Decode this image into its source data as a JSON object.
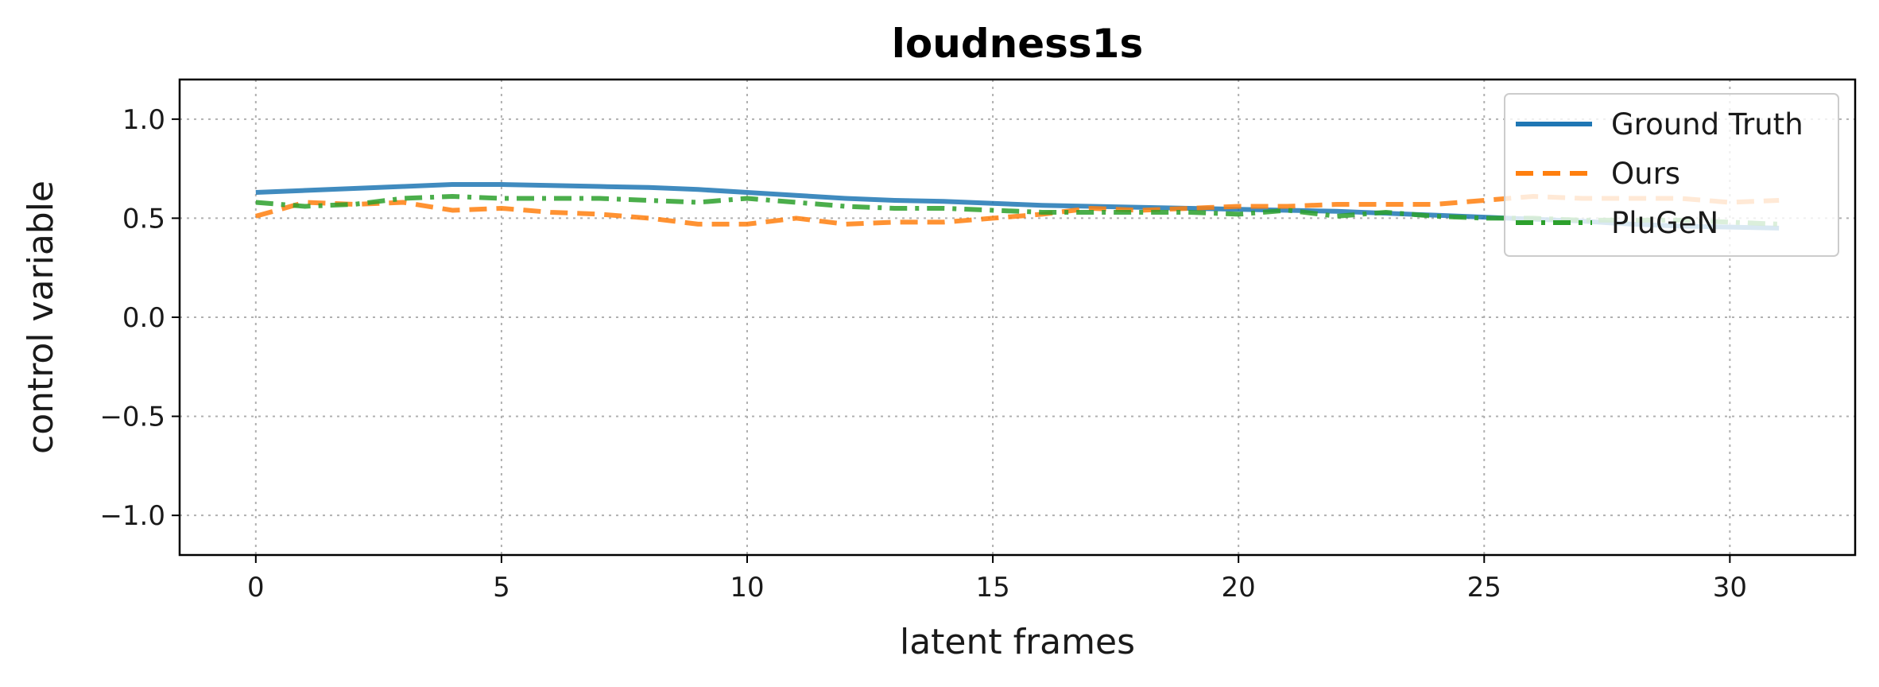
{
  "chart_data": {
    "type": "line",
    "title": "loudness1s",
    "xlabel": "latent frames",
    "ylabel": "control variable",
    "xlim": [
      -1.55,
      32.55
    ],
    "ylim": [
      -1.2,
      1.2
    ],
    "xticks": [
      0,
      5,
      10,
      15,
      20,
      25,
      30
    ],
    "xtick_labels": [
      "0",
      "5",
      "10",
      "15",
      "20",
      "25",
      "30"
    ],
    "yticks": [
      -1.0,
      -0.5,
      0.0,
      0.5,
      1.0
    ],
    "ytick_labels": [
      "−1.0",
      "−0.5",
      "0.0",
      "0.5",
      "1.0"
    ],
    "grid": true,
    "legend_position": "top-right",
    "x": [
      0,
      1,
      2,
      3,
      4,
      5,
      6,
      7,
      8,
      9,
      10,
      11,
      12,
      13,
      14,
      15,
      16,
      17,
      18,
      19,
      20,
      21,
      22,
      23,
      24,
      25,
      26,
      27,
      28,
      29,
      30,
      31
    ],
    "series": [
      {
        "name": "Ground Truth",
        "color": "#1f77b4",
        "style": "solid",
        "values": [
          0.63,
          0.64,
          0.65,
          0.66,
          0.67,
          0.67,
          0.665,
          0.66,
          0.655,
          0.645,
          0.63,
          0.615,
          0.6,
          0.59,
          0.585,
          0.575,
          0.565,
          0.56,
          0.555,
          0.55,
          0.545,
          0.54,
          0.535,
          0.525,
          0.515,
          0.505,
          0.495,
          0.485,
          0.47,
          0.46,
          0.455,
          0.45
        ]
      },
      {
        "name": "Ours",
        "color": "#ff7f0e",
        "style": "dashed",
        "values": [
          0.51,
          0.58,
          0.57,
          0.58,
          0.54,
          0.55,
          0.53,
          0.52,
          0.5,
          0.47,
          0.47,
          0.5,
          0.47,
          0.48,
          0.48,
          0.5,
          0.52,
          0.55,
          0.54,
          0.55,
          0.56,
          0.56,
          0.57,
          0.57,
          0.57,
          0.59,
          0.61,
          0.6,
          0.6,
          0.6,
          0.58,
          0.59
        ]
      },
      {
        "name": "PluGeN",
        "color": "#2ca02c",
        "style": "dashdot",
        "values": [
          0.58,
          0.56,
          0.57,
          0.6,
          0.61,
          0.6,
          0.6,
          0.6,
          0.59,
          0.58,
          0.6,
          0.58,
          0.56,
          0.55,
          0.55,
          0.54,
          0.53,
          0.53,
          0.53,
          0.53,
          0.52,
          0.54,
          0.51,
          0.53,
          0.51,
          0.5,
          0.5,
          0.49,
          0.49,
          0.49,
          0.48,
          0.47
        ]
      }
    ]
  }
}
